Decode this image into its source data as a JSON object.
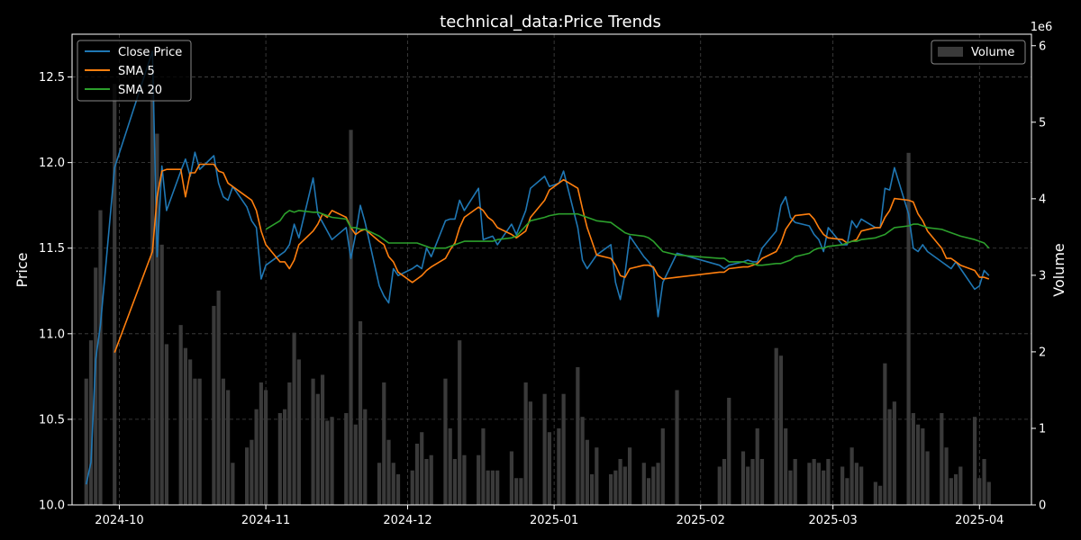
{
  "chart_data": {
    "type": "line",
    "title": "technical_data:Price Trends",
    "xlabel": "",
    "ylabel": "Price",
    "y2label": "Volume",
    "y2_multiplier_label": "1e6",
    "xlim": [
      "2024-09-21",
      "2025-04-12"
    ],
    "ylim": [
      10.0,
      12.75
    ],
    "y2lim": [
      0,
      6.15
    ],
    "x_ticks": [
      "2024-10",
      "2024-11",
      "2024-12",
      "2025-01",
      "2025-02",
      "2025-03",
      "2025-04"
    ],
    "y_ticks": [
      10.0,
      10.5,
      11.0,
      11.5,
      12.0,
      12.5
    ],
    "y2_ticks": [
      0,
      1,
      2,
      3,
      4,
      5,
      6
    ],
    "grid": true,
    "legend_left": [
      "Close Price",
      "SMA 5",
      "SMA 20"
    ],
    "legend_right": [
      "Volume"
    ],
    "legend_left_position": "upper-left",
    "legend_right_position": "upper-right",
    "colors": {
      "background": "#000000",
      "close": "#1f77b4",
      "sma5": "#ff7f0e",
      "sma20": "#2ca02c",
      "volume": "#3a3a3a",
      "grid": "#555555",
      "text": "#ffffff"
    },
    "dates": [
      "2024-09-24",
      "2024-09-25",
      "2024-09-26",
      "2024-09-27",
      "2024-09-30",
      "2024-10-08",
      "2024-10-09",
      "2024-10-10",
      "2024-10-11",
      "2024-10-14",
      "2024-10-15",
      "2024-10-16",
      "2024-10-17",
      "2024-10-18",
      "2024-10-21",
      "2024-10-22",
      "2024-10-23",
      "2024-10-24",
      "2024-10-25",
      "2024-10-28",
      "2024-10-29",
      "2024-10-30",
      "2024-10-31",
      "2024-11-01",
      "2024-11-04",
      "2024-11-05",
      "2024-11-06",
      "2024-11-07",
      "2024-11-08",
      "2024-11-11",
      "2024-11-12",
      "2024-11-13",
      "2024-11-14",
      "2024-11-15",
      "2024-11-18",
      "2024-11-19",
      "2024-11-20",
      "2024-11-21",
      "2024-11-22",
      "2024-11-25",
      "2024-11-26",
      "2024-11-27",
      "2024-11-28",
      "2024-11-29",
      "2024-12-02",
      "2024-12-03",
      "2024-12-04",
      "2024-12-05",
      "2024-12-06",
      "2024-12-09",
      "2024-12-10",
      "2024-12-11",
      "2024-12-12",
      "2024-12-13",
      "2024-12-16",
      "2024-12-17",
      "2024-12-18",
      "2024-12-19",
      "2024-12-20",
      "2024-12-23",
      "2024-12-24",
      "2024-12-25",
      "2024-12-26",
      "2024-12-27",
      "2024-12-30",
      "2024-12-31",
      "2025-01-02",
      "2025-01-03",
      "2025-01-06",
      "2025-01-07",
      "2025-01-08",
      "2025-01-09",
      "2025-01-10",
      "2025-01-13",
      "2025-01-14",
      "2025-01-15",
      "2025-01-16",
      "2025-01-17",
      "2025-01-20",
      "2025-01-21",
      "2025-01-22",
      "2025-01-23",
      "2025-01-24",
      "2025-01-27",
      "2025-02-05",
      "2025-02-06",
      "2025-02-07",
      "2025-02-10",
      "2025-02-11",
      "2025-02-12",
      "2025-02-13",
      "2025-02-14",
      "2025-02-17",
      "2025-02-18",
      "2025-02-19",
      "2025-02-20",
      "2025-02-21",
      "2025-02-24",
      "2025-02-25",
      "2025-02-26",
      "2025-02-27",
      "2025-02-28",
      "2025-03-03",
      "2025-03-04",
      "2025-03-05",
      "2025-03-06",
      "2025-03-07",
      "2025-03-10",
      "2025-03-11",
      "2025-03-12",
      "2025-03-13",
      "2025-03-14",
      "2025-03-17",
      "2025-03-18",
      "2025-03-19",
      "2025-03-20",
      "2025-03-21",
      "2025-03-24",
      "2025-03-25",
      "2025-03-26",
      "2025-03-27",
      "2025-03-28",
      "2025-03-31",
      "2025-04-01",
      "2025-04-02",
      "2025-04-03"
    ],
    "series": [
      {
        "name": "Close Price",
        "values": [
          10.12,
          10.25,
          10.85,
          11.05,
          11.97,
          12.65,
          11.45,
          11.98,
          11.72,
          11.95,
          12.02,
          11.92,
          12.06,
          11.96,
          12.04,
          11.88,
          11.8,
          11.78,
          11.86,
          11.74,
          11.66,
          11.62,
          11.32,
          11.4,
          11.46,
          11.48,
          11.52,
          11.64,
          11.56,
          11.91,
          11.7,
          11.65,
          11.6,
          11.55,
          11.62,
          11.44,
          11.58,
          11.75,
          11.65,
          11.28,
          11.22,
          11.18,
          11.38,
          11.34,
          11.38,
          11.4,
          11.38,
          11.5,
          11.45,
          11.66,
          11.67,
          11.67,
          11.78,
          11.72,
          11.85,
          11.55,
          11.56,
          11.57,
          11.52,
          11.64,
          11.58,
          11.65,
          11.72,
          11.85,
          11.92,
          11.86,
          11.88,
          11.95,
          11.62,
          11.43,
          11.38,
          11.42,
          11.46,
          11.52,
          11.3,
          11.2,
          11.35,
          11.57,
          11.45,
          11.42,
          11.38,
          11.1,
          11.3,
          11.47,
          11.4,
          11.38,
          11.4,
          11.42,
          11.43,
          11.42,
          11.42,
          11.5,
          11.6,
          11.75,
          11.8,
          11.68,
          11.65,
          11.63,
          11.58,
          11.55,
          11.48,
          11.62,
          11.52,
          11.52,
          11.66,
          11.62,
          11.67,
          11.62,
          11.62,
          11.85,
          11.84,
          11.97,
          11.7,
          11.5,
          11.48,
          11.52,
          11.48,
          11.42,
          11.4,
          11.38,
          11.42,
          11.38,
          11.26,
          11.28,
          11.37,
          11.34
        ]
      },
      {
        "name": "SMA 5",
        "values": [
          null,
          null,
          null,
          null,
          10.89,
          11.48,
          11.8,
          11.95,
          11.96,
          11.96,
          11.8,
          11.94,
          11.94,
          11.99,
          11.99,
          11.95,
          11.94,
          11.88,
          11.86,
          11.8,
          11.78,
          11.72,
          11.6,
          11.52,
          11.42,
          11.42,
          11.38,
          11.43,
          11.52,
          11.6,
          11.64,
          11.7,
          11.68,
          11.72,
          11.68,
          11.62,
          11.58,
          11.6,
          11.61,
          11.54,
          11.52,
          11.45,
          11.42,
          11.36,
          11.3,
          11.32,
          11.34,
          11.37,
          11.39,
          11.44,
          11.49,
          11.53,
          11.62,
          11.68,
          11.74,
          11.72,
          11.68,
          11.66,
          11.62,
          11.58,
          11.56,
          11.58,
          11.6,
          11.68,
          11.78,
          11.84,
          11.88,
          11.9,
          11.85,
          11.73,
          11.62,
          11.54,
          11.46,
          11.44,
          11.4,
          11.34,
          11.33,
          11.38,
          11.4,
          11.4,
          11.39,
          11.34,
          11.32,
          11.33,
          11.36,
          11.36,
          11.38,
          11.39,
          11.39,
          11.4,
          11.41,
          11.44,
          11.48,
          11.53,
          11.61,
          11.65,
          11.69,
          11.7,
          11.67,
          11.62,
          11.58,
          11.56,
          11.55,
          11.53,
          11.54,
          11.55,
          11.6,
          11.62,
          11.62,
          11.68,
          11.72,
          11.79,
          11.78,
          11.77,
          11.7,
          11.66,
          11.6,
          11.5,
          11.44,
          11.44,
          11.42,
          11.4,
          11.37,
          11.33,
          11.33,
          11.32
        ]
      },
      {
        "name": "SMA 20",
        "values": [
          null,
          null,
          null,
          null,
          null,
          null,
          null,
          null,
          null,
          null,
          null,
          null,
          null,
          null,
          null,
          null,
          null,
          null,
          null,
          null,
          null,
          null,
          null,
          11.61,
          11.66,
          11.7,
          11.72,
          11.71,
          11.72,
          11.71,
          11.71,
          11.7,
          11.69,
          11.68,
          11.67,
          11.62,
          11.62,
          11.61,
          11.61,
          11.57,
          11.55,
          11.53,
          11.53,
          11.53,
          11.53,
          11.53,
          11.52,
          11.51,
          11.5,
          11.5,
          11.51,
          11.52,
          11.53,
          11.54,
          11.54,
          11.54,
          11.54,
          11.54,
          11.55,
          11.56,
          11.57,
          11.6,
          11.63,
          11.66,
          11.68,
          11.69,
          11.7,
          11.7,
          11.7,
          11.69,
          11.68,
          11.67,
          11.66,
          11.65,
          11.63,
          11.61,
          11.59,
          11.58,
          11.57,
          11.56,
          11.54,
          11.51,
          11.48,
          11.46,
          11.44,
          11.44,
          11.42,
          11.42,
          11.41,
          11.41,
          11.4,
          11.4,
          11.41,
          11.41,
          11.42,
          11.43,
          11.45,
          11.47,
          11.49,
          11.5,
          11.5,
          11.51,
          11.52,
          11.53,
          11.54,
          11.54,
          11.55,
          11.56,
          11.57,
          11.58,
          11.6,
          11.62,
          11.63,
          11.64,
          11.64,
          11.63,
          11.62,
          11.61,
          11.6,
          11.59,
          11.58,
          11.57,
          11.55,
          11.54,
          11.53,
          11.5
        ]
      }
    ],
    "volume": [
      1.65,
      2.15,
      3.1,
      3.85,
      5.5,
      5.55,
      4.85,
      3.4,
      2.1,
      2.35,
      2.05,
      1.9,
      1.65,
      1.65,
      2.6,
      2.8,
      1.65,
      1.5,
      0.55,
      0.75,
      0.85,
      1.25,
      1.6,
      1.5,
      1.2,
      1.25,
      1.6,
      2.25,
      1.9,
      1.65,
      1.45,
      1.7,
      1.1,
      1.15,
      1.2,
      4.9,
      1.05,
      2.4,
      1.25,
      0.55,
      1.6,
      0.85,
      0.55,
      0.4,
      0.45,
      0.8,
      0.95,
      0.6,
      0.65,
      1.65,
      1.0,
      0.6,
      2.15,
      0.65,
      0.65,
      1.0,
      0.45,
      0.45,
      0.45,
      0.7,
      0.35,
      0.35,
      1.6,
      1.35,
      1.45,
      0.95,
      1.0,
      1.45,
      1.8,
      1.15,
      0.85,
      0.4,
      0.75,
      0.4,
      0.45,
      0.6,
      0.5,
      0.75,
      0.55,
      0.35,
      0.5,
      0.55,
      1.0,
      1.5,
      0.5,
      0.6,
      1.4,
      0.7,
      0.5,
      0.6,
      1.0,
      0.6,
      2.05,
      1.95,
      1.0,
      0.45,
      0.6,
      0.55,
      0.6,
      0.55,
      0.45,
      0.6,
      0.5,
      0.35,
      0.75,
      0.55,
      0.5,
      0.3,
      0.25,
      1.85,
      1.25,
      1.35,
      4.6,
      1.2,
      1.05,
      1.0,
      0.7,
      1.2,
      0.75,
      0.35,
      0.4,
      0.5,
      1.15,
      0.35,
      0.6,
      0.3
    ]
  }
}
